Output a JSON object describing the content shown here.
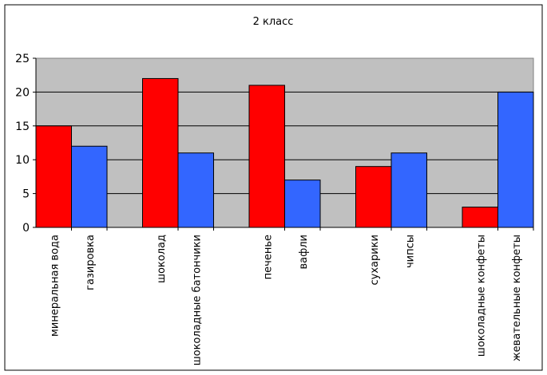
{
  "chart_data": {
    "type": "bar",
    "title": "2 класс",
    "xlabel": "",
    "ylabel": "",
    "ylim": [
      0,
      25
    ],
    "yticks": [
      0,
      5,
      10,
      15,
      20,
      25
    ],
    "grid": true,
    "legend": "none",
    "plot_background": "#c0c0c0",
    "groups": [
      {
        "bars": [
          {
            "label": "минеральная вода",
            "value": 15,
            "color": "#ff0000"
          },
          {
            "label": "газировка",
            "value": 12,
            "color": "#3366ff"
          }
        ]
      },
      {
        "bars": [
          {
            "label": "шоколад",
            "value": 22,
            "color": "#ff0000"
          },
          {
            "label": "шоколадные батончики",
            "value": 11,
            "color": "#3366ff"
          }
        ]
      },
      {
        "bars": [
          {
            "label": "печенье",
            "value": 21,
            "color": "#ff0000"
          },
          {
            "label": "вафли",
            "value": 7,
            "color": "#3366ff"
          }
        ]
      },
      {
        "bars": [
          {
            "label": "сухарики",
            "value": 9,
            "color": "#ff0000"
          },
          {
            "label": "чипсы",
            "value": 11,
            "color": "#3366ff"
          }
        ]
      },
      {
        "bars": [
          {
            "label": "шоколадные конфеты",
            "value": 3,
            "color": "#ff0000"
          },
          {
            "label": "жевательные конфеты",
            "value": 20,
            "color": "#3366ff"
          }
        ]
      }
    ]
  }
}
